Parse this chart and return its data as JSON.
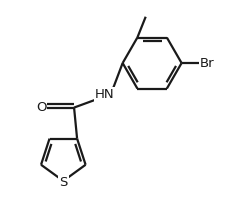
{
  "bg_color": "#ffffff",
  "line_color": "#1a1a1a",
  "line_width": 1.6,
  "font_size": 9.5,
  "figsize": [
    2.4,
    2.13
  ],
  "dpi": 100,
  "xlim": [
    -0.8,
    5.2
  ],
  "ylim": [
    -2.8,
    2.8
  ]
}
